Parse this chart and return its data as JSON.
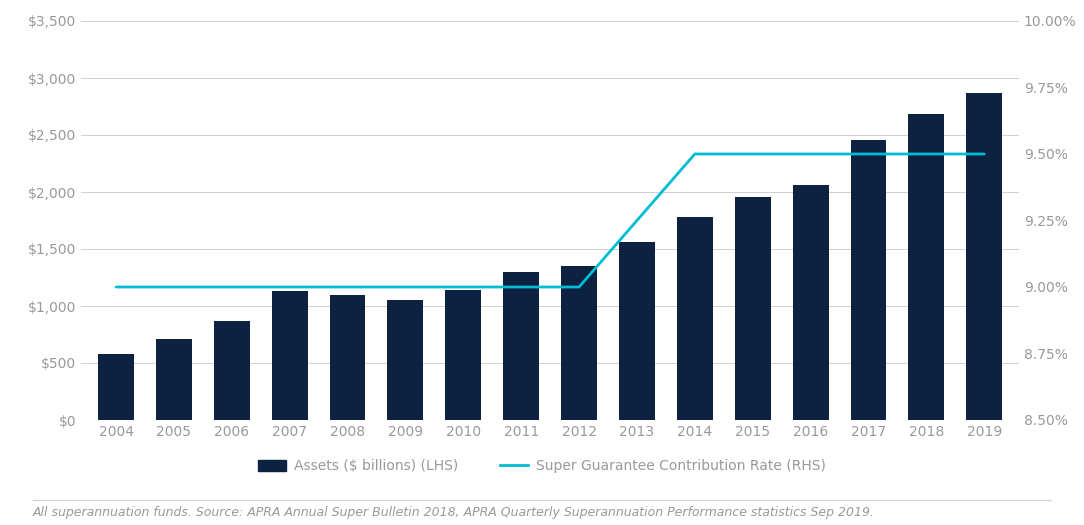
{
  "years": [
    2004,
    2005,
    2006,
    2007,
    2008,
    2009,
    2010,
    2011,
    2012,
    2013,
    2014,
    2015,
    2016,
    2017,
    2018,
    2019
  ],
  "assets": [
    580,
    710,
    870,
    1130,
    1100,
    1050,
    1140,
    1300,
    1350,
    1560,
    1780,
    1960,
    2060,
    2460,
    2680,
    2870
  ],
  "sgr": [
    9.0,
    9.0,
    9.0,
    9.0,
    9.0,
    9.0,
    9.0,
    9.0,
    9.0,
    9.25,
    9.5,
    9.5,
    9.5,
    9.5,
    9.5,
    9.5
  ],
  "bar_color": "#0d2240",
  "line_color": "#00bcd4",
  "background_color": "#ffffff",
  "ylim_left": [
    0,
    3500
  ],
  "ylim_right": [
    8.5,
    10.0
  ],
  "yticks_left": [
    0,
    500,
    1000,
    1500,
    2000,
    2500,
    3000,
    3500
  ],
  "yticks_right": [
    8.5,
    8.75,
    9.0,
    9.25,
    9.5,
    9.75,
    10.0
  ],
  "legend_label_bar": "Assets ($ billions) (LHS)",
  "legend_label_line": "Super Guarantee Contribution Rate (RHS)",
  "footnote": "All superannuation funds. Source: APRA Annual Super Bulletin 2018, APRA Quarterly Superannuation Performance statistics Sep 2019.",
  "grid_color": "#d0d0d0",
  "axis_label_color": "#999999",
  "tick_label_fontsize": 10,
  "legend_fontsize": 10,
  "footnote_fontsize": 9
}
